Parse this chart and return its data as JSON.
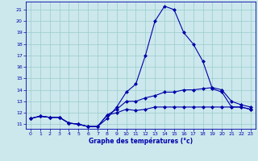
{
  "title": "Graphe des températures (°c)",
  "bg_color": "#cce8ec",
  "grid_color": "#99cccc",
  "line_color": "#0000aa",
  "x_hours": [
    0,
    1,
    2,
    3,
    4,
    5,
    6,
    7,
    8,
    9,
    10,
    11,
    12,
    13,
    14,
    15,
    16,
    17,
    18,
    19,
    20,
    21,
    22,
    23
  ],
  "series1": [
    11.5,
    11.7,
    11.6,
    11.6,
    11.1,
    11.0,
    10.8,
    10.8,
    11.5,
    12.5,
    13.8,
    14.5,
    17.0,
    20.0,
    21.3,
    21.0,
    19.0,
    18.0,
    16.5,
    14.1,
    13.8,
    12.5,
    12.5,
    12.3
  ],
  "series2": [
    11.5,
    11.7,
    11.6,
    11.6,
    11.1,
    11.0,
    10.8,
    10.8,
    11.8,
    12.3,
    13.0,
    13.0,
    13.3,
    13.5,
    13.8,
    13.8,
    14.0,
    14.0,
    14.1,
    14.2,
    14.0,
    13.0,
    12.7,
    12.5
  ],
  "series3": [
    11.5,
    11.7,
    11.6,
    11.6,
    11.1,
    11.0,
    10.8,
    10.8,
    11.8,
    12.0,
    12.3,
    12.2,
    12.3,
    12.5,
    12.5,
    12.5,
    12.5,
    12.5,
    12.5,
    12.5,
    12.5,
    12.5,
    12.5,
    12.3
  ],
  "ylim": [
    10.6,
    21.7
  ],
  "yticks": [
    11,
    12,
    13,
    14,
    15,
    16,
    17,
    18,
    19,
    20,
    21
  ],
  "xlim": [
    -0.5,
    23.5
  ],
  "xticks": [
    0,
    1,
    2,
    3,
    4,
    5,
    6,
    7,
    8,
    9,
    10,
    11,
    12,
    13,
    14,
    15,
    16,
    17,
    18,
    19,
    20,
    21,
    22,
    23
  ]
}
